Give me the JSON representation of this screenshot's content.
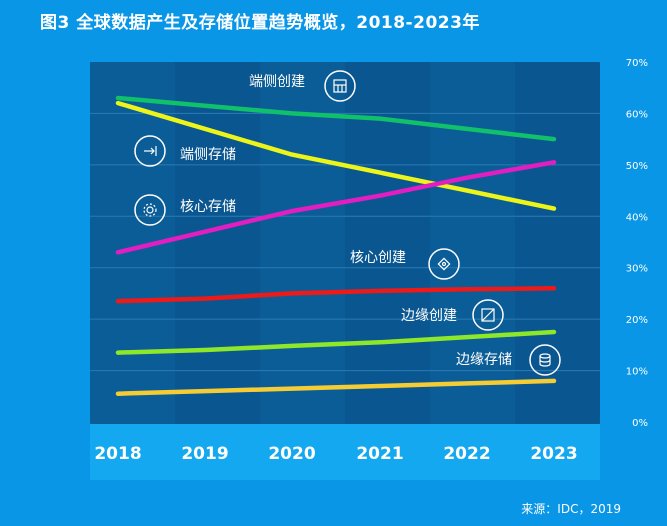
{
  "title": "图3 全球数据产生及存储位置趋势概览，2018-2023年",
  "source": "来源：IDC，2019",
  "colors": {
    "background": "#0a96e6",
    "plot": "#0b5d97",
    "plot_stripe": "#0a5690",
    "grid": "#2a7bb4",
    "xaxis_band": "#14a8f0"
  },
  "chart_data": {
    "type": "line",
    "categories": [
      "2018",
      "2019",
      "2020",
      "2021",
      "2022",
      "2023"
    ],
    "ylim": [
      0,
      0.7
    ],
    "yticks": [
      {
        "v": 0,
        "label": "0%"
      },
      {
        "v": 0.1,
        "label": "10%"
      },
      {
        "v": 0.2,
        "label": "20%"
      },
      {
        "v": 0.3,
        "label": "30%"
      },
      {
        "v": 0.4,
        "label": "40%"
      },
      {
        "v": 0.5,
        "label": "50%"
      },
      {
        "v": 0.6,
        "label": "60%"
      },
      {
        "v": 0.7,
        "label": "70%"
      }
    ],
    "grid": true,
    "series": [
      {
        "name": "端侧创建",
        "color": "#10c06a",
        "icon": "factory-icon",
        "values": [
          0.63,
          0.615,
          0.6,
          0.59,
          0.57,
          0.55
        ]
      },
      {
        "name": "端侧存储",
        "color": "#ecf41a",
        "icon": "arrow-to-bar-icon",
        "values": [
          0.62,
          0.57,
          0.52,
          0.485,
          0.45,
          0.415
        ]
      },
      {
        "name": "核心存储",
        "color": "#e21ec2",
        "icon": "gear-icon",
        "values": [
          0.33,
          0.37,
          0.41,
          0.44,
          0.475,
          0.505
        ]
      },
      {
        "name": "核心创建",
        "color": "#ee1a1a",
        "icon": "chip-icon",
        "values": [
          0.235,
          0.24,
          0.25,
          0.255,
          0.258,
          0.26
        ]
      },
      {
        "name": "边缘创建",
        "color": "#8ee82a",
        "icon": "grid-box-icon",
        "values": [
          0.135,
          0.14,
          0.148,
          0.155,
          0.165,
          0.175
        ]
      },
      {
        "name": "边缘存储",
        "color": "#f5cc33",
        "icon": "database-icon",
        "values": [
          0.055,
          0.06,
          0.065,
          0.07,
          0.075,
          0.08
        ]
      }
    ]
  }
}
